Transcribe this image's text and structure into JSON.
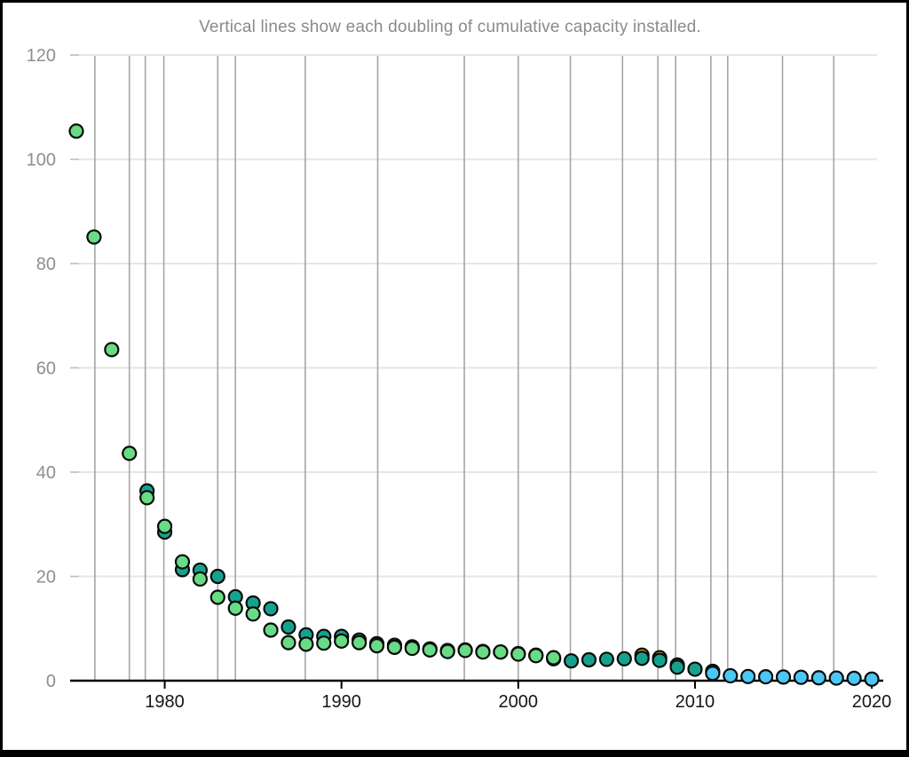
{
  "chart_data": {
    "type": "scatter",
    "title": "Vertical lines show each doubling of cumulative capacity installed.",
    "xlabel": "",
    "ylabel": "",
    "xlim": [
      1974.95,
      2020.65
    ],
    "ylim": [
      0,
      120
    ],
    "x_ticks": [
      1980,
      1990,
      2000,
      2010,
      2020
    ],
    "y_ticks": [
      0,
      20,
      40,
      60,
      80,
      100,
      120
    ],
    "grid": "light horizontal gridlines at each y tick; gray vertical lines at each doubling of cumulative installed capacity",
    "legend": "none",
    "doubling_line_years": [
      1976.05,
      1978.0,
      1978.9,
      1979.95,
      1983.0,
      1984.0,
      1987.95,
      1992.05,
      1996.95,
      2000.0,
      2002.95,
      2005.9,
      2007.9,
      2008.9,
      2010.9,
      2011.85,
      2014.95,
      2017.85
    ],
    "series": [
      {
        "name": "source-orange",
        "color_key": "orange",
        "points": [
          [
            2007,
            4.9
          ]
        ]
      },
      {
        "name": "source-yellow",
        "color_key": "yellow",
        "points": [
          [
            2008,
            4.4
          ],
          [
            2009,
            3.0
          ]
        ]
      },
      {
        "name": "source-teal",
        "color_key": "teal",
        "points": [
          [
            1979,
            36.4
          ],
          [
            1980,
            28.5
          ],
          [
            1981,
            21.3
          ],
          [
            1982,
            21.2
          ],
          [
            1983,
            20.0
          ],
          [
            1984,
            16.1
          ],
          [
            1985,
            14.9
          ],
          [
            1986,
            13.8
          ],
          [
            1987,
            10.3
          ],
          [
            1988,
            8.8
          ],
          [
            1989,
            8.5
          ],
          [
            1990,
            8.5
          ],
          [
            1991,
            7.8
          ],
          [
            1992,
            7.1
          ],
          [
            1993,
            6.8
          ],
          [
            1994,
            6.5
          ],
          [
            1995,
            6.1
          ],
          [
            1996,
            5.8
          ],
          [
            1997,
            5.9
          ],
          [
            1998,
            5.6
          ],
          [
            1999,
            5.5
          ],
          [
            2000,
            5.2
          ],
          [
            2001,
            4.9
          ],
          [
            2002,
            4.2
          ],
          [
            2003,
            3.8
          ],
          [
            2004,
            4.0
          ],
          [
            2005,
            4.1
          ],
          [
            2006,
            4.2
          ],
          [
            2007,
            4.3
          ],
          [
            2008,
            3.9
          ],
          [
            2009,
            2.6
          ],
          [
            2010,
            2.2
          ],
          [
            2011,
            1.8
          ]
        ]
      },
      {
        "name": "source-green",
        "color_key": "green",
        "points": [
          [
            1975,
            105.4
          ],
          [
            1976,
            85.1
          ],
          [
            1977,
            63.5
          ],
          [
            1978,
            43.6
          ],
          [
            1979,
            35.1
          ],
          [
            1980,
            29.6
          ],
          [
            1981,
            22.8
          ],
          [
            1982,
            19.5
          ],
          [
            1983,
            16.0
          ],
          [
            1984,
            13.9
          ],
          [
            1985,
            12.8
          ],
          [
            1986,
            9.7
          ],
          [
            1987,
            7.3
          ],
          [
            1988,
            7.0
          ],
          [
            1989,
            7.2
          ],
          [
            1990,
            7.6
          ],
          [
            1991,
            7.3
          ],
          [
            1992,
            6.7
          ],
          [
            1993,
            6.4
          ],
          [
            1994,
            6.2
          ],
          [
            1995,
            5.9
          ],
          [
            1996,
            5.6
          ],
          [
            1997,
            5.8
          ],
          [
            1998,
            5.5
          ],
          [
            1999,
            5.5
          ],
          [
            2000,
            5.1
          ],
          [
            2001,
            4.8
          ],
          [
            2002,
            4.4
          ]
        ]
      },
      {
        "name": "source-blue",
        "color_key": "blue",
        "points": [
          [
            2011,
            1.4
          ],
          [
            2012,
            0.95
          ],
          [
            2013,
            0.8
          ],
          [
            2014,
            0.75
          ],
          [
            2015,
            0.7
          ],
          [
            2016,
            0.65
          ],
          [
            2017,
            0.55
          ],
          [
            2018,
            0.5
          ],
          [
            2019,
            0.45
          ],
          [
            2020,
            0.3
          ]
        ]
      }
    ]
  },
  "colors": {
    "green": "#68db85",
    "teal": "#16a18d",
    "blue": "#4bc7f4",
    "orange": "#efa33e",
    "yellow": "#f2d83b",
    "point_stroke": "#0a0a0a",
    "h_gridline": "#e6e6e6",
    "v_doubling_line": "#a6a6a6",
    "axis": "#000000",
    "y_label": "#8e8e8e",
    "x_label": "#161616",
    "title": "#8a8a8a",
    "background": "#ffffff",
    "frame": "#000000"
  }
}
